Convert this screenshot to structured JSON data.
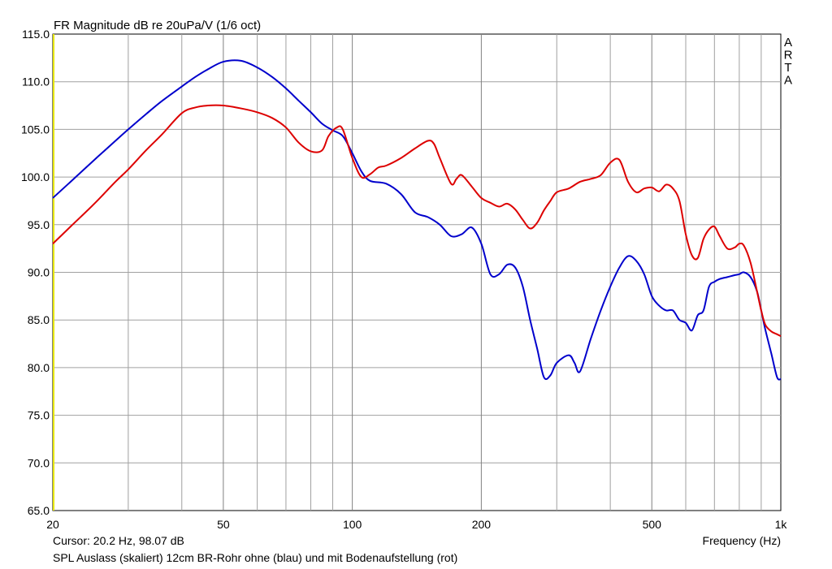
{
  "chart_data": {
    "type": "line",
    "title": "FR Magnitude dB re 20uPa/V (1/6 oct)",
    "watermark": [
      "A",
      "R",
      "T",
      "A"
    ],
    "xlabel": "Frequency (Hz)",
    "x_scale": "log",
    "xlim": [
      20,
      1000
    ],
    "ylim": [
      65,
      115
    ],
    "y_ticks": [
      {
        "value": 65,
        "label": "65.0"
      },
      {
        "value": 70,
        "label": "70.0"
      },
      {
        "value": 75,
        "label": "75.0"
      },
      {
        "value": 80,
        "label": "80.0"
      },
      {
        "value": 85,
        "label": "85.0"
      },
      {
        "value": 90,
        "label": "90.0"
      },
      {
        "value": 95,
        "label": "95.0"
      },
      {
        "value": 100,
        "label": "100.0"
      },
      {
        "value": 105,
        "label": "105.0"
      },
      {
        "value": 110,
        "label": "110.0"
      },
      {
        "value": 115,
        "label": "115.0"
      }
    ],
    "x_ticks": [
      {
        "value": 20,
        "label": "20"
      },
      {
        "value": 50,
        "label": "50"
      },
      {
        "value": 100,
        "label": "100"
      },
      {
        "value": 200,
        "label": "200"
      },
      {
        "value": 500,
        "label": "500"
      },
      {
        "value": 1000,
        "label": "1k"
      }
    ],
    "x_minor_grid": [
      30,
      40,
      60,
      70,
      80,
      90,
      300,
      400,
      600,
      700,
      800,
      900
    ],
    "grid": true,
    "cursor_text": "Cursor: 20.2 Hz, 98.07 dB",
    "caption": "SPL Auslass (skaliert) 12cm BR-Rohr ohne (blau) und mit Bodenaufstellung (rot)",
    "colors": {
      "blue_series": "#0000cc",
      "red_series": "#dd0000",
      "cursor_line": "#e6e600",
      "grid": "#a0a0a0",
      "grid_major": "#808080"
    },
    "series": [
      {
        "color": "#0000cc",
        "x": [
          20,
          22,
          25,
          28,
          30,
          33,
          36,
          40,
          43,
          46,
          50,
          55,
          60,
          65,
          70,
          75,
          80,
          85,
          90,
          95,
          100,
          105,
          110,
          120,
          130,
          140,
          150,
          160,
          170,
          180,
          190,
          200,
          210,
          220,
          230,
          240,
          250,
          260,
          270,
          280,
          290,
          300,
          320,
          330,
          340,
          360,
          380,
          400,
          420,
          440,
          460,
          480,
          500,
          520,
          540,
          560,
          580,
          600,
          620,
          640,
          660,
          680,
          700,
          720,
          750,
          780,
          800,
          820,
          850,
          880,
          900,
          920,
          950,
          980,
          1000
        ],
        "y": [
          97.8,
          99.5,
          101.8,
          103.8,
          105.0,
          106.6,
          108.0,
          109.5,
          110.5,
          111.3,
          112.1,
          112.2,
          111.5,
          110.5,
          109.3,
          108.0,
          106.8,
          105.6,
          104.9,
          104.3,
          102.5,
          100.6,
          99.6,
          99.3,
          98.2,
          96.3,
          95.8,
          95.0,
          93.8,
          94.0,
          94.7,
          93.0,
          89.8,
          89.8,
          90.8,
          90.5,
          88.5,
          85.0,
          82.0,
          79.0,
          79.2,
          80.5,
          81.3,
          80.5,
          79.6,
          83.0,
          86.0,
          88.5,
          90.5,
          91.7,
          91.2,
          89.8,
          87.5,
          86.5,
          86.0,
          86.0,
          85.0,
          84.7,
          83.9,
          85.5,
          86.0,
          88.5,
          89.0,
          89.3,
          89.5,
          89.7,
          89.8,
          90.0,
          89.5,
          88.0,
          86.0,
          84.0,
          81.5,
          79.0,
          78.8
        ]
      },
      {
        "color": "#dd0000",
        "x": [
          20,
          22,
          25,
          28,
          30,
          33,
          36,
          40,
          43,
          46,
          50,
          55,
          60,
          65,
          70,
          75,
          80,
          85,
          88,
          92,
          95,
          100,
          105,
          110,
          115,
          120,
          130,
          140,
          150,
          155,
          160,
          170,
          175,
          180,
          190,
          200,
          210,
          220,
          230,
          240,
          250,
          260,
          270,
          280,
          290,
          300,
          320,
          340,
          360,
          380,
          400,
          420,
          440,
          460,
          480,
          500,
          520,
          540,
          560,
          580,
          600,
          620,
          640,
          660,
          680,
          700,
          720,
          750,
          780,
          800,
          820,
          850,
          880,
          900,
          920,
          950,
          980,
          1000
        ],
        "y": [
          93.0,
          94.8,
          97.2,
          99.5,
          100.8,
          102.8,
          104.5,
          106.7,
          107.3,
          107.5,
          107.5,
          107.2,
          106.8,
          106.2,
          105.2,
          103.6,
          102.7,
          102.8,
          104.3,
          105.2,
          105.0,
          102.0,
          100.0,
          100.3,
          101.0,
          101.2,
          102.0,
          103.0,
          103.8,
          103.5,
          102.0,
          99.3,
          99.8,
          100.2,
          99.0,
          97.8,
          97.3,
          96.9,
          97.2,
          96.6,
          95.5,
          94.6,
          95.2,
          96.5,
          97.5,
          98.4,
          98.8,
          99.5,
          99.8,
          100.2,
          101.5,
          101.8,
          99.5,
          98.4,
          98.8,
          98.9,
          98.5,
          99.2,
          98.8,
          97.5,
          94.0,
          91.8,
          91.5,
          93.5,
          94.5,
          94.8,
          93.8,
          92.5,
          92.6,
          93.0,
          92.8,
          91.0,
          88.0,
          86.0,
          84.5,
          83.8,
          83.5,
          83.3
        ]
      }
    ]
  }
}
